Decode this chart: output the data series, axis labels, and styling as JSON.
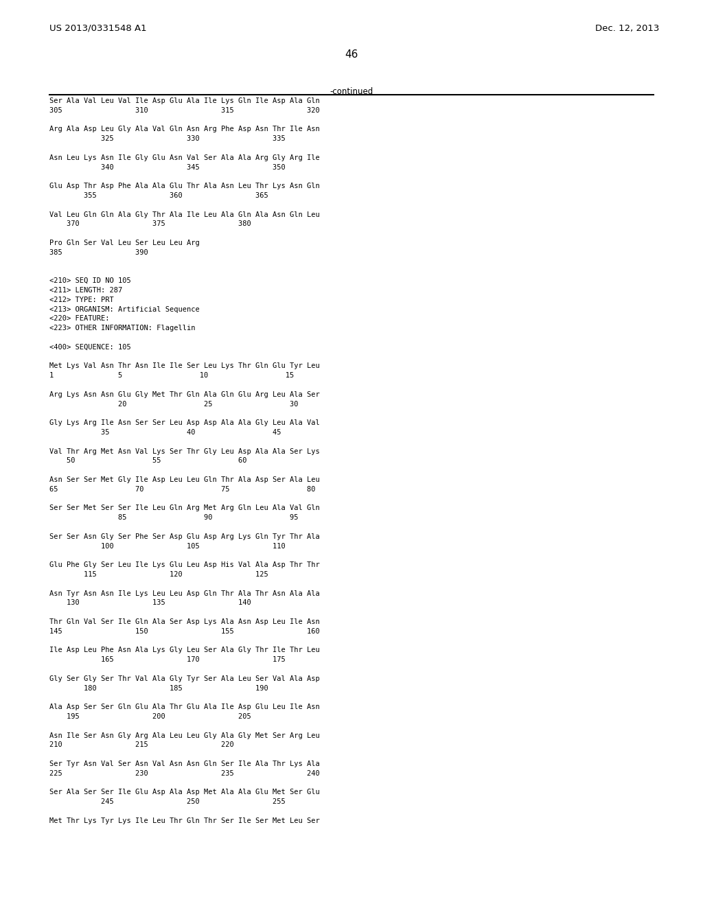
{
  "patent_number": "US 2013/0331548 A1",
  "date": "Dec. 12, 2013",
  "page_number": "46",
  "continued_label": "-continued",
  "background_color": "#ffffff",
  "text_color": "#000000",
  "content_lines": [
    "Ser Ala Val Leu Val Ile Asp Glu Ala Ile Lys Gln Ile Asp Ala Gln",
    "305                 310                 315                 320",
    "",
    "Arg Ala Asp Leu Gly Ala Val Gln Asn Arg Phe Asp Asn Thr Ile Asn",
    "            325                 330                 335",
    "",
    "Asn Leu Lys Asn Ile Gly Glu Asn Val Ser Ala Ala Arg Gly Arg Ile",
    "            340                 345                 350",
    "",
    "Glu Asp Thr Asp Phe Ala Ala Glu Thr Ala Asn Leu Thr Lys Asn Gln",
    "        355                 360                 365",
    "",
    "Val Leu Gln Gln Ala Gly Thr Ala Ile Leu Ala Gln Ala Asn Gln Leu",
    "    370                 375                 380",
    "",
    "Pro Gln Ser Val Leu Ser Leu Leu Arg",
    "385                 390",
    "",
    "",
    "<210> SEQ ID NO 105",
    "<211> LENGTH: 287",
    "<212> TYPE: PRT",
    "<213> ORGANISM: Artificial Sequence",
    "<220> FEATURE:",
    "<223> OTHER INFORMATION: Flagellin",
    "",
    "<400> SEQUENCE: 105",
    "",
    "Met Lys Val Asn Thr Asn Ile Ile Ser Leu Lys Thr Gln Glu Tyr Leu",
    "1               5                  10                  15",
    "",
    "Arg Lys Asn Asn Glu Gly Met Thr Gln Ala Gln Glu Arg Leu Ala Ser",
    "                20                  25                  30",
    "",
    "Gly Lys Arg Ile Asn Ser Ser Leu Asp Asp Ala Ala Gly Leu Ala Val",
    "            35                  40                  45",
    "",
    "Val Thr Arg Met Asn Val Lys Ser Thr Gly Leu Asp Ala Ala Ser Lys",
    "    50                  55                  60",
    "",
    "Asn Ser Ser Met Gly Ile Asp Leu Leu Gln Thr Ala Asp Ser Ala Leu",
    "65                  70                  75                  80",
    "",
    "Ser Ser Met Ser Ser Ile Leu Gln Arg Met Arg Gln Leu Ala Val Gln",
    "                85                  90                  95",
    "",
    "Ser Ser Asn Gly Ser Phe Ser Asp Glu Asp Arg Lys Gln Tyr Thr Ala",
    "            100                 105                 110",
    "",
    "Glu Phe Gly Ser Leu Ile Lys Glu Leu Asp His Val Ala Asp Thr Thr",
    "        115                 120                 125",
    "",
    "Asn Tyr Asn Asn Ile Lys Leu Leu Asp Gln Thr Ala Thr Asn Ala Ala",
    "    130                 135                 140",
    "",
    "Thr Gln Val Ser Ile Gln Ala Ser Asp Lys Ala Asn Asp Leu Ile Asn",
    "145                 150                 155                 160",
    "",
    "Ile Asp Leu Phe Asn Ala Lys Gly Leu Ser Ala Gly Thr Ile Thr Leu",
    "            165                 170                 175",
    "",
    "Gly Ser Gly Ser Thr Val Ala Gly Tyr Ser Ala Leu Ser Val Ala Asp",
    "        180                 185                 190",
    "",
    "Ala Asp Ser Ser Gln Glu Ala Thr Glu Ala Ile Asp Glu Leu Ile Asn",
    "    195                 200                 205",
    "",
    "Asn Ile Ser Asn Gly Arg Ala Leu Leu Gly Ala Gly Met Ser Arg Leu",
    "210                 215                 220",
    "",
    "Ser Tyr Asn Val Ser Asn Val Asn Asn Gln Ser Ile Ala Thr Lys Ala",
    "225                 230                 235                 240",
    "",
    "Ser Ala Ser Ser Ile Glu Asp Ala Asp Met Ala Ala Glu Met Ser Glu",
    "            245                 250                 255",
    "",
    "Met Thr Lys Tyr Lys Ile Leu Thr Gln Thr Ser Ile Ser Met Leu Ser"
  ]
}
